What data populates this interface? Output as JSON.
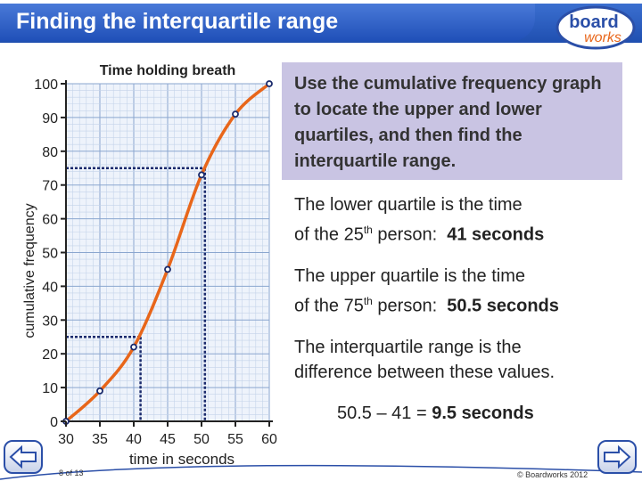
{
  "title": "Finding the interquartile range",
  "logo": {
    "line1": "board",
    "line2": "works"
  },
  "prompt": "Use the cumulative frequency graph to locate the upper and lower quartiles, and then find the interquartile range.",
  "lower_quartile": {
    "line1": "The lower quartile is the time",
    "line2_pre": "of the 25",
    "line2_sup": "th",
    "line2_post": " person:",
    "value": "41 seconds"
  },
  "upper_quartile": {
    "line1": "The upper quartile is the time",
    "line2_pre": "of the 75",
    "line2_sup": "th",
    "line2_post": " person:",
    "value": "50.5 seconds"
  },
  "iqr_text": {
    "line1": "The interquartile range is the",
    "line2": "difference between these values."
  },
  "calculation": {
    "expression": "50.5 – 41 = ",
    "result": "9.5 seconds"
  },
  "footer": {
    "slide": "8 of 13",
    "copyright": "© Boardworks 2012"
  },
  "colors": {
    "title_bg": "#2a5cc4",
    "curve": "#e8661a",
    "grid": "#9fb7d8",
    "prompt_bg": "#c9c4e3"
  },
  "icons": {
    "prev": "arrow-left-icon",
    "next": "arrow-right-icon"
  },
  "chart_data": {
    "type": "line",
    "title": "Time holding breath",
    "xlabel": "time in seconds",
    "ylabel": "cumulative frequency",
    "xlim": [
      30,
      60
    ],
    "ylim": [
      0,
      100
    ],
    "x_ticks": [
      30,
      35,
      40,
      45,
      50,
      55,
      60
    ],
    "y_ticks": [
      0,
      10,
      20,
      30,
      40,
      50,
      60,
      70,
      80,
      90,
      100
    ],
    "points": [
      {
        "x": 30,
        "y": 0
      },
      {
        "x": 35,
        "y": 9
      },
      {
        "x": 40,
        "y": 22
      },
      {
        "x": 45,
        "y": 45
      },
      {
        "x": 50,
        "y": 73
      },
      {
        "x": 55,
        "y": 91
      },
      {
        "x": 60,
        "y": 100
      }
    ],
    "quartile_guides": [
      {
        "y": 25,
        "x": 41
      },
      {
        "y": 75,
        "x": 50.5
      }
    ],
    "grid": true
  }
}
